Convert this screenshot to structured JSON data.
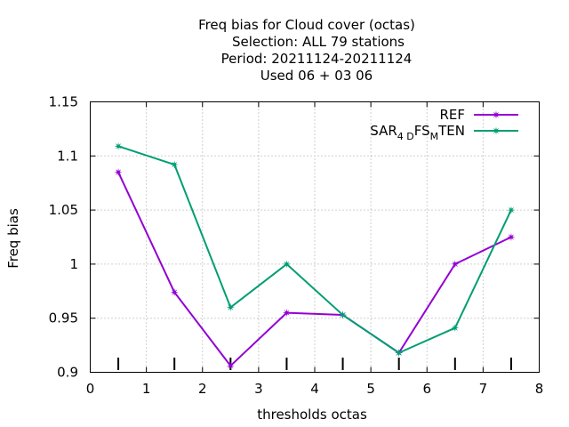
{
  "chart_data": {
    "type": "line",
    "title_lines": [
      "Freq bias  for Cloud cover (octas)",
      "Selection: ALL     79 stations",
      "Period: 20211124-20211124",
      "Used  06 + 03 06"
    ],
    "xlabel": "thresholds octas",
    "ylabel": "Freq bias",
    "xlim": [
      0,
      8
    ],
    "ylim": [
      0.9,
      1.15
    ],
    "xticks": [
      "0",
      "1",
      "2",
      "3",
      "4",
      "5",
      "6",
      "7",
      "8"
    ],
    "yticks": [
      "0.9",
      "0.95",
      "1",
      "1.05",
      "1.1",
      "1.15"
    ],
    "grid": true,
    "legend_position": "top-right",
    "x": [
      0.5,
      1.5,
      2.5,
      3.5,
      4.5,
      5.5,
      6.5,
      7.5
    ],
    "series": [
      {
        "name": "REF",
        "color": "#9400d3",
        "values": [
          1.085,
          0.974,
          0.906,
          0.955,
          0.953,
          0.918,
          1.0,
          1.025
        ]
      },
      {
        "name_parts": {
          "a": "SAR",
          "sub1": "4 D",
          "b": "FS",
          "sub2": "M",
          "c": "TEN"
        },
        "color": "#009e73",
        "values": [
          1.109,
          1.092,
          0.96,
          1.0,
          0.953,
          0.918,
          0.941,
          1.05
        ]
      }
    ]
  }
}
